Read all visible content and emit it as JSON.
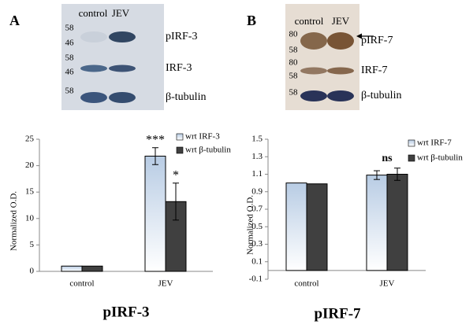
{
  "panels": [
    {
      "label": "A",
      "blot": {
        "lanes": [
          "control",
          "JEV"
        ],
        "markers": [
          58,
          46,
          58,
          46,
          58
        ],
        "bands": [
          "pIRF-3",
          "IRF-3",
          "β-tubulin"
        ]
      }
    },
    {
      "label": "B",
      "blot": {
        "lanes": [
          "control",
          "JEV"
        ],
        "markers": [
          80,
          58,
          80,
          58,
          58
        ],
        "bands": [
          "pIRF-7",
          "IRF-7",
          "β-tubulin"
        ]
      }
    }
  ],
  "chart_data": [
    {
      "type": "bar",
      "title": "pIRF-3",
      "y_label": "Normalized O.D.",
      "categories": [
        "control",
        "JEV"
      ],
      "series": [
        {
          "name": "wrt IRF-3",
          "color": "#b8cce4",
          "values": [
            1,
            21.8
          ],
          "errors": [
            null,
            1.6
          ],
          "annotations": [
            null,
            "***"
          ]
        },
        {
          "name": "wrt β-tubulin",
          "color": "#404040",
          "values": [
            1,
            13.2
          ],
          "errors": [
            null,
            3.5
          ],
          "annotations": [
            null,
            "*"
          ]
        }
      ],
      "ylim": [
        0,
        25
      ],
      "yticks": [
        0,
        5,
        10,
        15,
        20,
        25
      ]
    },
    {
      "type": "bar",
      "title": "pIRF-7",
      "y_label": "Normalized O.D.",
      "categories": [
        "control",
        "JEV"
      ],
      "series": [
        {
          "name": "wrt IRF-7",
          "color": "#b8cce4",
          "values": [
            1.0,
            1.09
          ],
          "errors": [
            null,
            0.05
          ]
        },
        {
          "name": "wrt β-tubulin",
          "color": "#404040",
          "values": [
            0.99,
            1.1
          ],
          "errors": [
            null,
            0.07
          ]
        }
      ],
      "category_annotations": [
        null,
        "ns"
      ],
      "ylim": [
        -0.1,
        1.5
      ],
      "yticks": [
        -0.1,
        0.1,
        0.3,
        0.5,
        0.7,
        0.9,
        1.1,
        1.3,
        1.5
      ]
    }
  ]
}
